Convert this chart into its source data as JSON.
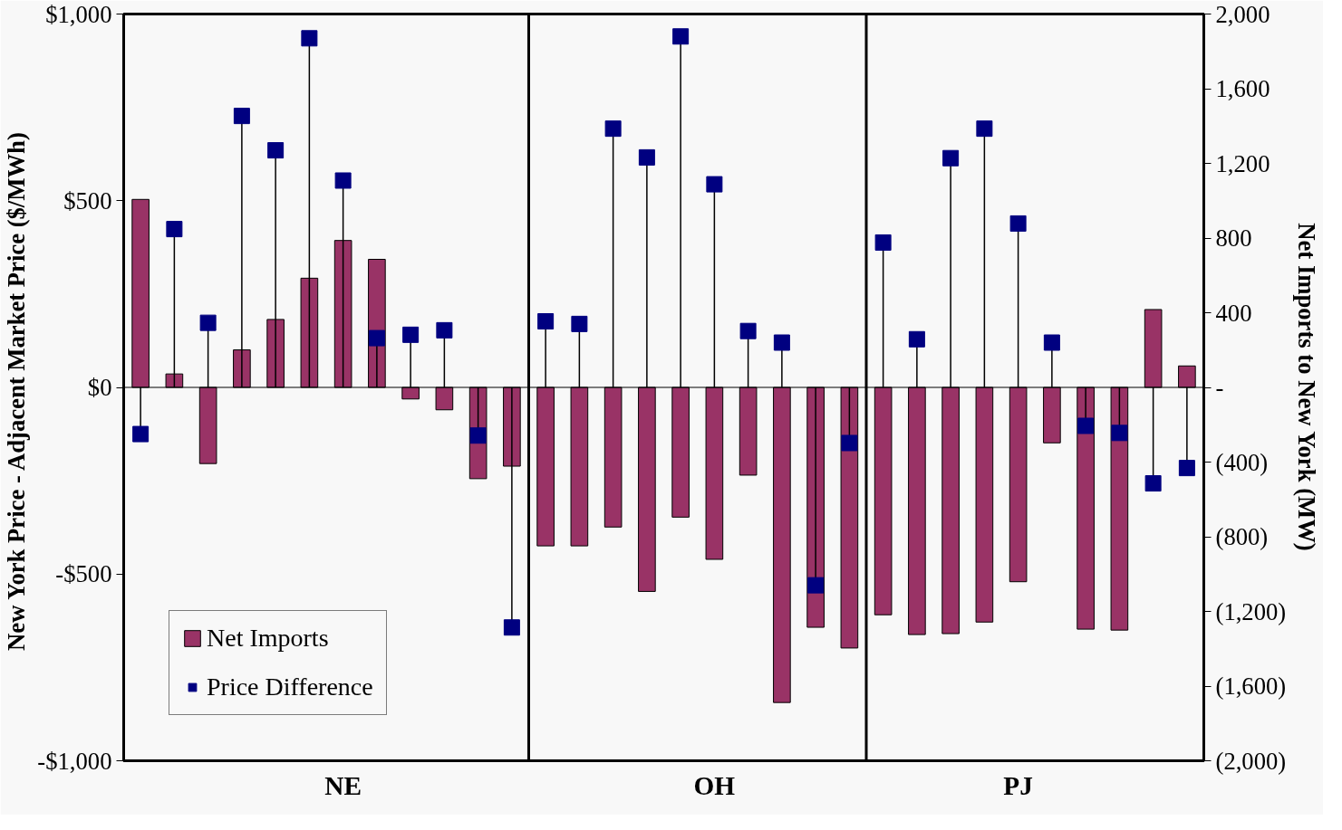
{
  "chart_data": {
    "type": "bar",
    "ylabel": "New York Price - Adjacent Market Price  ($/MWh)",
    "y2label": "Net Imports to New York (MW)",
    "categories": [
      null,
      null,
      null,
      null,
      null,
      null,
      "NE",
      null,
      null,
      null,
      null,
      null,
      null,
      null,
      null,
      null,
      null,
      "OH",
      null,
      null,
      null,
      null,
      null,
      null,
      null,
      null,
      "PJ",
      null,
      null,
      null,
      null,
      null
    ],
    "ylim": [
      -1000,
      1000
    ],
    "yticks": [
      {
        "value": -1000,
        "label": "-$1,000"
      },
      {
        "value": -500,
        "label": "-$500"
      },
      {
        "value": 0,
        "label": "$0"
      },
      {
        "value": 500,
        "label": "$500"
      },
      {
        "value": 1000,
        "label": "$1,000"
      }
    ],
    "y2lim": [
      -2000,
      2000
    ],
    "y2ticks": [
      {
        "value": -2000,
        "label": "(2,000)"
      },
      {
        "value": -1600,
        "label": "(1,600)"
      },
      {
        "value": -1200,
        "label": "(1,200)"
      },
      {
        "value": -800,
        "label": "(800)"
      },
      {
        "value": -400,
        "label": "(400)"
      },
      {
        "value": 0,
        "label": "-"
      },
      {
        "value": 400,
        "label": "400"
      },
      {
        "value": 800,
        "label": "800"
      },
      {
        "value": 1200,
        "label": "1,200"
      },
      {
        "value": 1600,
        "label": "1,600"
      },
      {
        "value": 2000,
        "label": "2,000"
      }
    ],
    "grid": false,
    "legend": "bottom left",
    "series": [
      {
        "name": "Net Imports",
        "axis": "y2",
        "color": "#993366",
        "values": [
          1007,
          72,
          -408,
          201,
          364,
          585,
          787,
          686,
          -62,
          -120,
          -489,
          -422,
          -849,
          -849,
          -748,
          -1093,
          -695,
          -921,
          -470,
          -1688,
          -1285,
          -1396,
          -1218,
          -1324,
          -1319,
          -1257,
          -1041,
          -297,
          -1295,
          -1300,
          417,
          115
        ]
      },
      {
        "name": "Price Difference",
        "type": "lollipop",
        "marker": "square",
        "color": "#000080",
        "values": [
          -125,
          424,
          173,
          727,
          635,
          935,
          554,
          132,
          141,
          153,
          -129,
          -643,
          177,
          170,
          693,
          616,
          940,
          544,
          151,
          120,
          -530,
          -149,
          388,
          129,
          614,
          693,
          439,
          120,
          -103,
          -122,
          -257,
          -216
        ]
      }
    ]
  }
}
